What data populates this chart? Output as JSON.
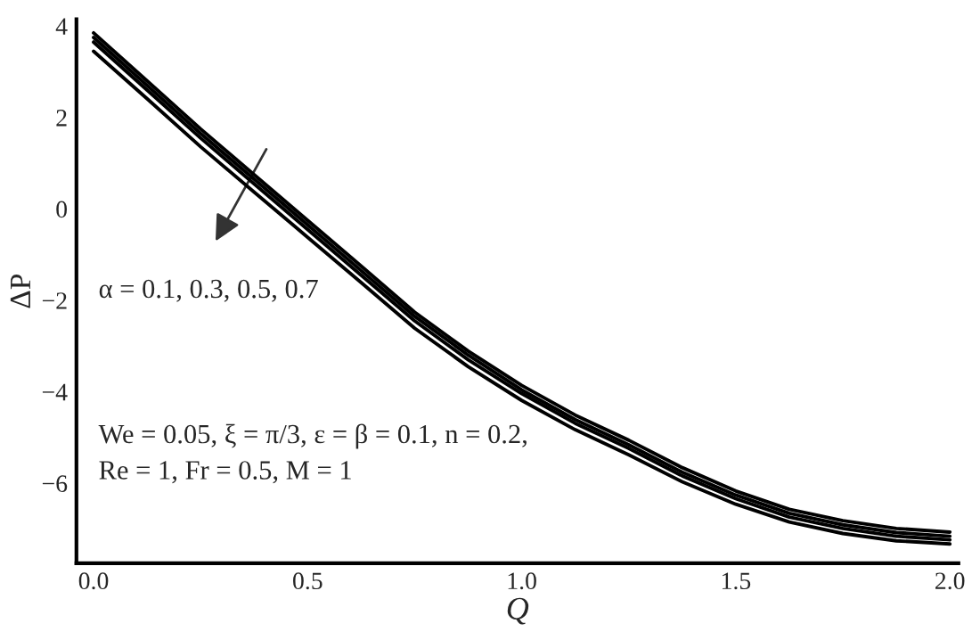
{
  "chart_data": {
    "type": "line",
    "xlabel": "Q",
    "ylabel": "ΔP",
    "x": [
      0,
      0.125,
      0.25,
      0.375,
      0.5,
      0.625,
      0.75,
      0.875,
      1.0,
      1.125,
      1.25,
      1.375,
      1.5,
      1.625,
      1.75,
      1.875,
      2.0
    ],
    "series": [
      {
        "color": "#000000",
        "values": [
          3.85,
          2.8,
          1.75,
          0.75,
          -0.25,
          -1.25,
          -2.26,
          -3.11,
          -3.86,
          -4.51,
          -5.06,
          -5.66,
          -6.17,
          -6.57,
          -6.82,
          -6.99,
          -7.07
        ]
      },
      {
        "color": "#000000",
        "values": [
          3.75,
          2.7,
          1.65,
          0.65,
          -0.35,
          -1.35,
          -2.35,
          -3.2,
          -3.96,
          -4.61,
          -5.16,
          -5.76,
          -6.26,
          -6.66,
          -6.91,
          -7.08,
          -7.16
        ]
      },
      {
        "color": "#000000",
        "values": [
          3.65,
          2.6,
          1.55,
          0.55,
          -0.45,
          -1.45,
          -2.45,
          -3.3,
          -4.04,
          -4.69,
          -5.24,
          -5.84,
          -6.34,
          -6.74,
          -6.99,
          -7.16,
          -7.24
        ]
      },
      {
        "color": "#000000",
        "values": [
          3.45,
          2.41,
          1.36,
          0.37,
          -0.62,
          -1.61,
          -2.61,
          -3.45,
          -4.19,
          -4.83,
          -5.38,
          -5.97,
          -6.46,
          -6.85,
          -7.1,
          -7.26,
          -7.33
        ]
      }
    ],
    "xlim": [
      -0.04,
      2.02
    ],
    "ylim": [
      -7.75,
      4.15
    ],
    "xticks": [
      {
        "value": 0,
        "label": "0.0"
      },
      {
        "value": 0.5,
        "label": "0.5"
      },
      {
        "value": 1,
        "label": "1.0"
      },
      {
        "value": 1.5,
        "label": "1.5"
      },
      {
        "value": 2,
        "label": "2.0"
      }
    ],
    "yticks": [
      {
        "value": -6,
        "label": "−6"
      },
      {
        "value": -4,
        "label": "−4"
      },
      {
        "value": -2,
        "label": "−2"
      },
      0,
      2,
      4
    ],
    "annotations": [
      "α = 0.1, 0.3, 0.5, 0.7",
      "We = 0.05, ξ = π/3, ε = β = 0.1, n = 0.2,\nRe = 1, Fr = 0.5, M = 1"
    ],
    "grid": false,
    "legend": false,
    "marker": "none",
    "line_style": "solid"
  }
}
